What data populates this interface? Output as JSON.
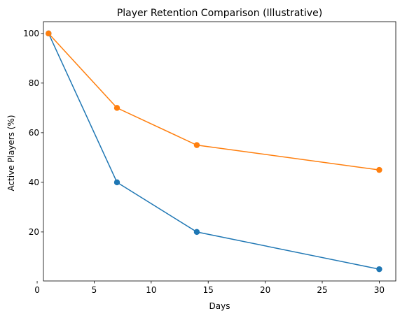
{
  "chart_data": {
    "type": "line",
    "title": "Player Retention Comparison (Illustrative)",
    "xlabel": "Days",
    "ylabel": "Active Players (%)",
    "xlim": [
      0.55,
      31.45
    ],
    "ylim": [
      0.25,
      104.75
    ],
    "xticks": [
      0,
      5,
      10,
      15,
      20,
      25,
      30
    ],
    "yticks": [
      20,
      40,
      60,
      80,
      100
    ],
    "grid": false,
    "series": [
      {
        "x": [
          1,
          7,
          14,
          30
        ],
        "y": [
          100,
          40,
          20,
          5
        ],
        "color": "#1f77b4",
        "marker": "circle"
      },
      {
        "x": [
          1,
          7,
          14,
          30
        ],
        "y": [
          100,
          70,
          55,
          45
        ],
        "color": "#ff7f0e",
        "marker": "circle"
      }
    ]
  }
}
